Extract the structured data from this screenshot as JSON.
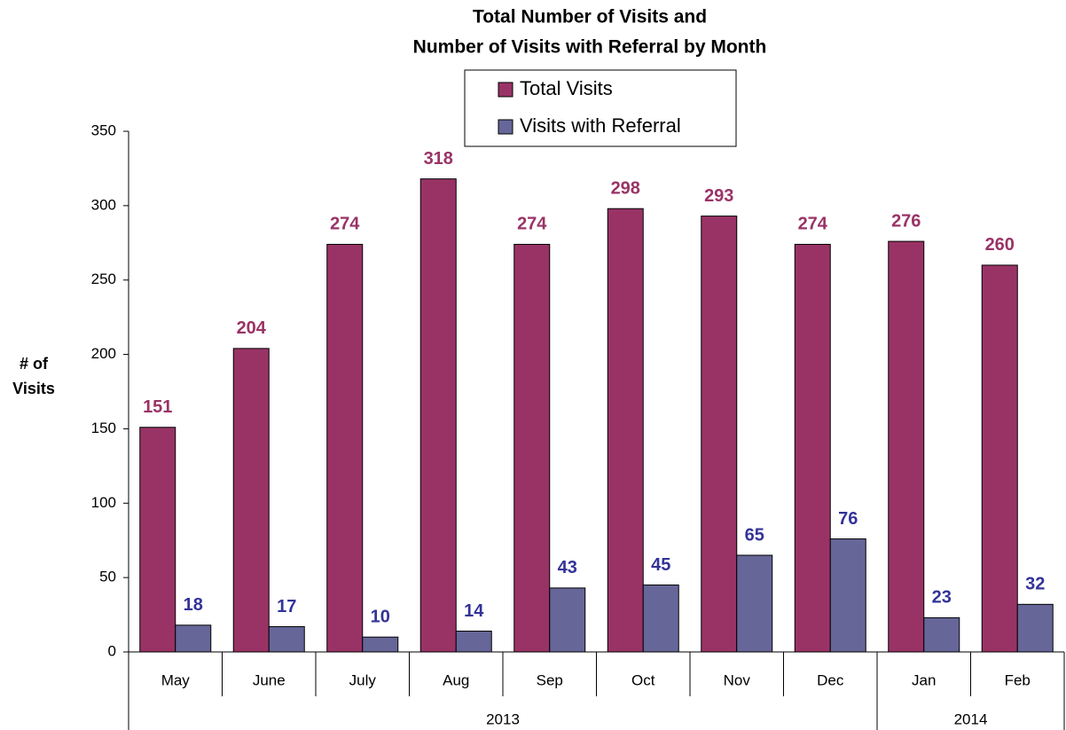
{
  "chart_data": {
    "type": "bar",
    "title": [
      "Total Number of Visits and",
      "Number of Visits with Referral by Month"
    ],
    "y_label": [
      "# of",
      "Visits"
    ],
    "categories": [
      "May",
      "June",
      "July",
      "Aug",
      "Sep",
      "Oct",
      "Nov",
      "Dec",
      "Jan",
      "Feb"
    ],
    "x_groups": [
      {
        "label": "2013",
        "count": 8
      },
      {
        "label": "2014",
        "count": 2
      }
    ],
    "series": [
      {
        "name": "Total Visits",
        "color": "#993366",
        "label_color": "#993366",
        "values": [
          151,
          204,
          274,
          318,
          274,
          298,
          293,
          274,
          276,
          260
        ]
      },
      {
        "name": "Visits with Referral",
        "color": "#666699",
        "label_color": "#333399",
        "values": [
          18,
          17,
          10,
          14,
          43,
          45,
          65,
          76,
          23,
          32
        ]
      }
    ],
    "ylim": [
      0,
      350
    ],
    "yticks": [
      0,
      50,
      100,
      150,
      200,
      250,
      300,
      350
    ],
    "grid": false,
    "legend": "top"
  }
}
